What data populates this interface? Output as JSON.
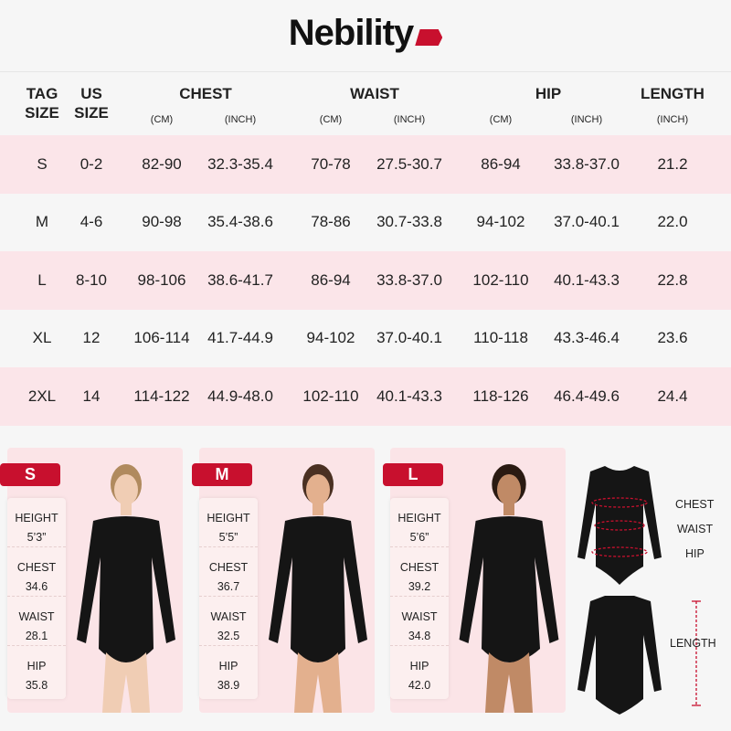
{
  "brand": {
    "name": "Nebility",
    "accent": "#c8102e"
  },
  "table": {
    "headers": {
      "tag": [
        "TAG",
        "SIZE"
      ],
      "us": [
        "US",
        "SIZE"
      ],
      "chest": "CHEST",
      "waist": "WAIST",
      "hip": "HIP",
      "length": "LENGTH",
      "cm": "(CM)",
      "inch": "(INCH)"
    },
    "rows": [
      [
        "S",
        "0-2",
        "82-90",
        "32.3-35.4",
        "70-78",
        "27.5-30.7",
        "86-94",
        "33.8-37.0",
        "21.2"
      ],
      [
        "M",
        "4-6",
        "90-98",
        "35.4-38.6",
        "78-86",
        "30.7-33.8",
        "94-102",
        "37.0-40.1",
        "22.0"
      ],
      [
        "L",
        "8-10",
        "98-106",
        "38.6-41.7",
        "86-94",
        "33.8-37.0",
        "102-110",
        "40.1-43.3",
        "22.8"
      ],
      [
        "XL",
        "12",
        "106-114",
        "41.7-44.9",
        "94-102",
        "37.0-40.1",
        "110-118",
        "43.3-46.4",
        "23.6"
      ],
      [
        "2XL",
        "14",
        "114-122",
        "44.9-48.0",
        "102-110",
        "40.1-43.3",
        "118-126",
        "46.4-49.6",
        "24.4"
      ]
    ]
  },
  "models": [
    {
      "size": "S",
      "labels": [
        "HEIGHT",
        "CHEST",
        "WAIST",
        "HIP"
      ],
      "values": [
        "5’3”",
        "34.6",
        "28.1",
        "35.8"
      ],
      "skin": "#f0cdb4",
      "hair": "#b08a5e"
    },
    {
      "size": "M",
      "labels": [
        "HEIGHT",
        "CHEST",
        "WAIST",
        "HIP"
      ],
      "values": [
        "5’5”",
        "36.7",
        "32.5",
        "38.9"
      ],
      "skin": "#e3b08e",
      "hair": "#4a3022"
    },
    {
      "size": "L",
      "labels": [
        "HEIGHT",
        "CHEST",
        "WAIST",
        "HIP"
      ],
      "values": [
        "5’6”",
        "39.2",
        "34.8",
        "42.0"
      ],
      "skin": "#c08a66",
      "hair": "#2a1a12"
    }
  ],
  "diagram": {
    "chest": "CHEST",
    "waist": "WAIST",
    "hip": "HIP",
    "length": "LENGTH"
  }
}
